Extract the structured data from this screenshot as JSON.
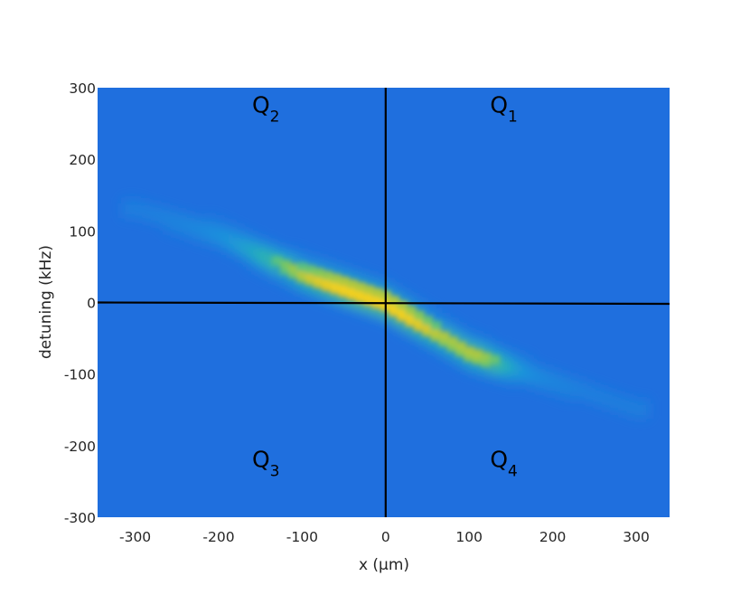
{
  "chart_data": {
    "type": "heatmap",
    "title": "",
    "xlabel": "x (μm)",
    "ylabel": "detuning (kHz)",
    "xlim": [
      -345,
      340
    ],
    "ylim": [
      -300,
      300
    ],
    "xticks": [
      -300,
      -200,
      -100,
      0,
      100,
      200,
      300
    ],
    "yticks": [
      -300,
      -200,
      -100,
      0,
      100,
      200,
      300
    ],
    "colormap": "parula",
    "colors": {
      "background": "#1f6fde",
      "peak": "#f2d024",
      "crosshair": "#000000"
    },
    "crosshair": {
      "x": 0,
      "y": 0
    },
    "quadrant_labels": [
      {
        "letter": "Q",
        "sub": "1",
        "x": 125,
        "y": 265
      },
      {
        "letter": "Q",
        "sub": "2",
        "x": -160,
        "y": 265
      },
      {
        "letter": "Q",
        "sub": "3",
        "x": -160,
        "y": -230
      },
      {
        "letter": "Q",
        "sub": "4",
        "x": 125,
        "y": -230
      }
    ],
    "ridge": {
      "description": "bright diagonal band of intensity",
      "points": [
        [
          -300,
          130
        ],
        [
          -200,
          95
        ],
        [
          -100,
          40
        ],
        [
          0,
          0
        ],
        [
          100,
          -70
        ],
        [
          200,
          -110
        ],
        [
          300,
          -150
        ]
      ],
      "peak": [
        -20,
        0
      ]
    }
  }
}
